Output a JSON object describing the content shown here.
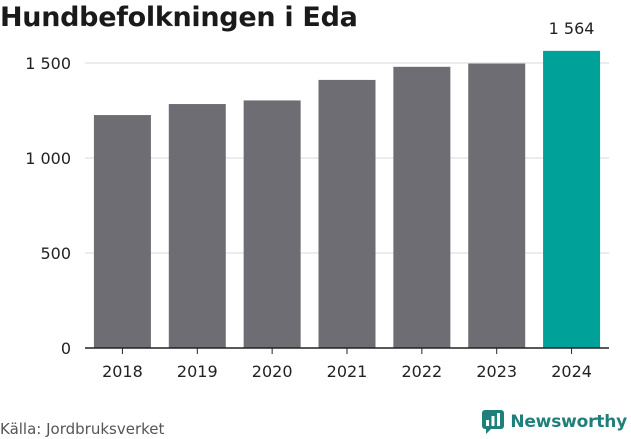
{
  "title": "Hundbefolkningen i Eda",
  "source": "Källa: Jordbruksverket",
  "brand": {
    "name": "Newsworthy",
    "icon": "newsworthy-logo-icon"
  },
  "colors": {
    "bar": "#6e6d73",
    "highlight": "#00a199",
    "grid": "#d9d9d9",
    "axis": "#222222",
    "brand": "#1f7f7a"
  },
  "chart_data": {
    "type": "bar",
    "categories": [
      "2018",
      "2019",
      "2020",
      "2021",
      "2022",
      "2023",
      "2024"
    ],
    "values": [
      1226,
      1284,
      1303,
      1411,
      1480,
      1497,
      1564
    ],
    "highlight_index": 6,
    "data_labels": [
      {
        "index": 6,
        "text": "1 564"
      }
    ],
    "ylim": [
      0,
      1600
    ],
    "yticks": [
      0,
      500,
      1000,
      1500
    ],
    "ytick_labels": [
      "0",
      "500",
      "1 000",
      "1 500"
    ],
    "grid": true,
    "xlabel": "",
    "ylabel": ""
  }
}
